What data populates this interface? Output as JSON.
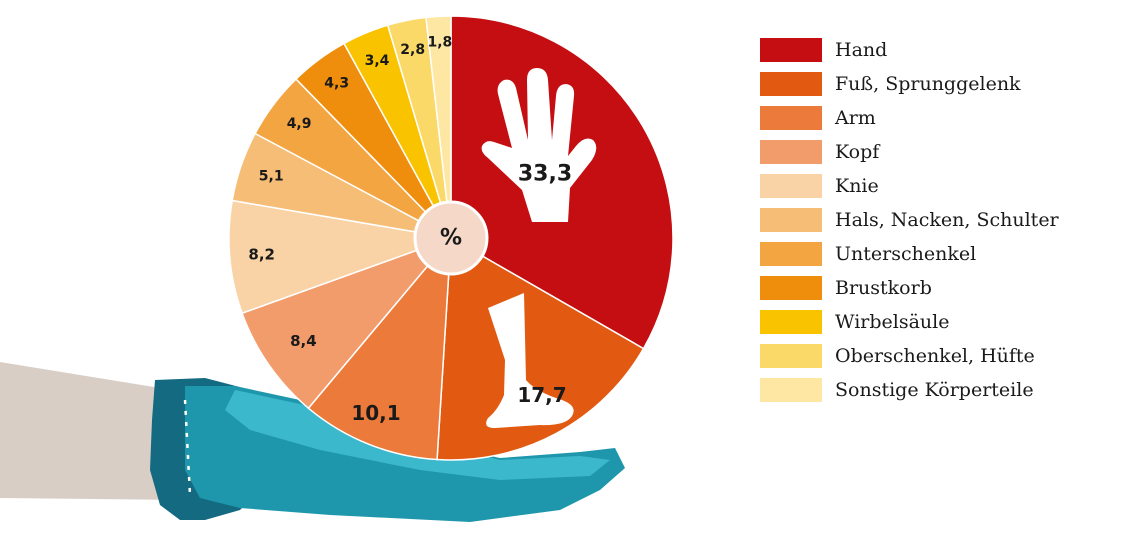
{
  "chart_data": {
    "type": "pie",
    "unit_label": "%",
    "categories": [
      "Hand",
      "Fuß, Sprunggelenk",
      "Arm",
      "Kopf",
      "Knie",
      "Hals, Nacken, Schulter",
      "Unterschenkel",
      "Brustkorb",
      "Wirbelsäule",
      "Oberschenkel, Hüfte",
      "Sonstige Körperteile"
    ],
    "values": [
      33.3,
      17.7,
      10.1,
      8.4,
      8.2,
      5.1,
      4.9,
      4.3,
      3.4,
      2.8,
      1.8
    ],
    "value_labels": [
      "33,3",
      "17,7",
      "10,1",
      "8,4",
      "8,2",
      "5,1",
      "4,9",
      "4,3",
      "3,4",
      "2,8",
      "1,8"
    ],
    "colors": [
      "#c50e12",
      "#e25a12",
      "#ec7a3a",
      "#f29c6c",
      "#f9d3a6",
      "#f6bd76",
      "#f2a540",
      "#ef8e0c",
      "#f9c300",
      "#fbd968",
      "#fde7a3"
    ],
    "legend_position": "right",
    "icons": {
      "hand_slice": "hand-icon",
      "foot_slice": "foot-icon",
      "base": "open-hand-icon"
    }
  }
}
